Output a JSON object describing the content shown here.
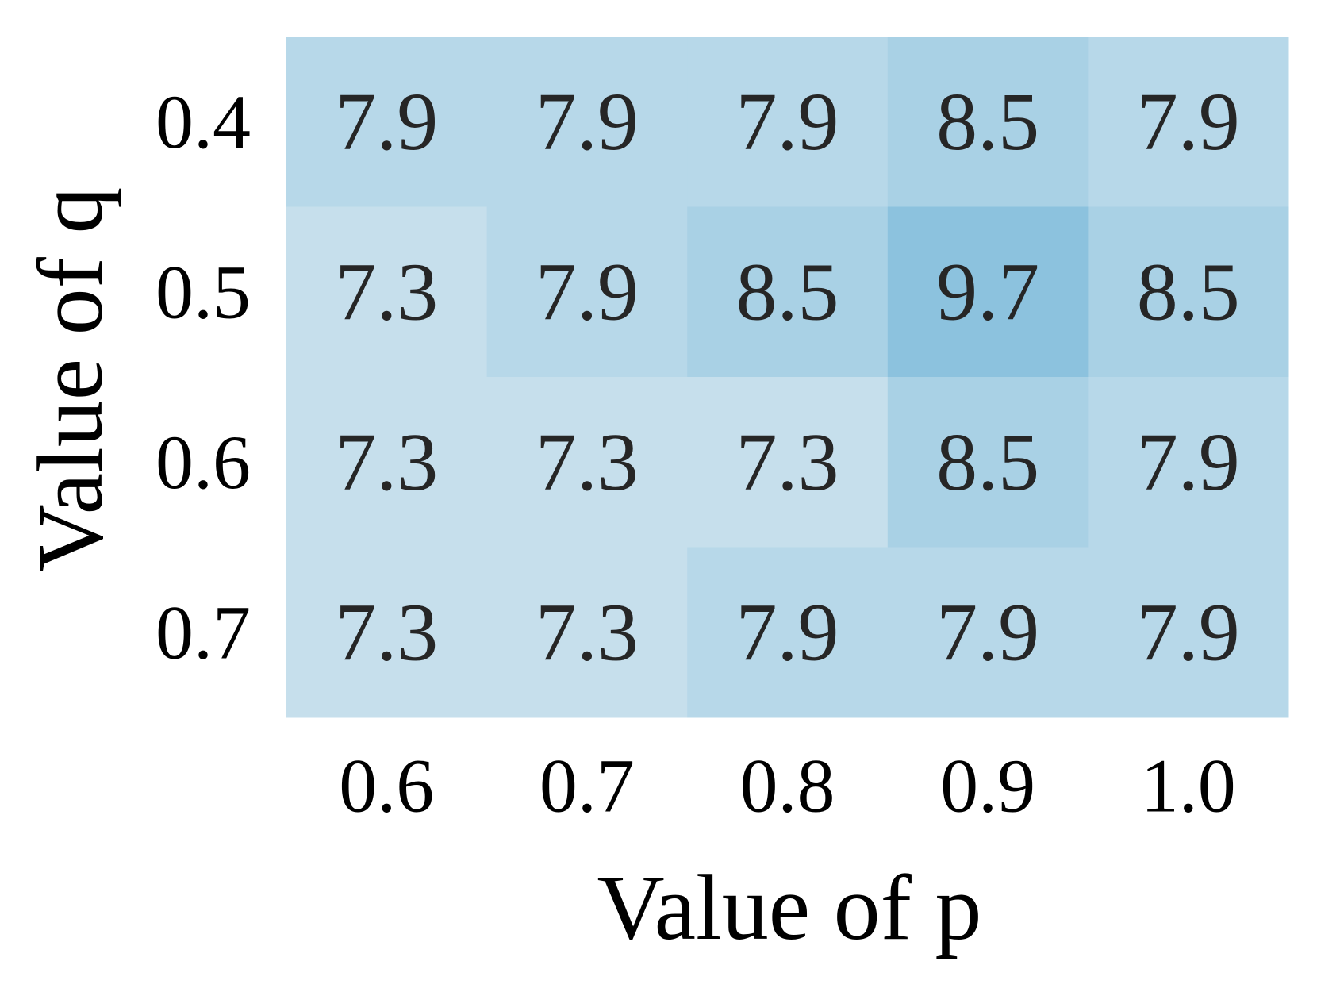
{
  "chart_data": {
    "type": "heatmap",
    "xlabel": "Value of p",
    "ylabel": "Value of q",
    "x_categories": [
      "0.6",
      "0.7",
      "0.8",
      "0.9",
      "1.0"
    ],
    "y_categories": [
      "0.4",
      "0.5",
      "0.6",
      "0.7"
    ],
    "values": [
      [
        7.9,
        7.9,
        7.9,
        8.5,
        7.9
      ],
      [
        7.3,
        7.9,
        8.5,
        9.7,
        8.5
      ],
      [
        7.3,
        7.3,
        7.3,
        8.5,
        7.9
      ],
      [
        7.3,
        7.3,
        7.9,
        7.9,
        7.9
      ]
    ],
    "colorscale": {
      "low": "#c6dfec",
      "high": "#8cc2de"
    },
    "text_color": "#262626"
  }
}
